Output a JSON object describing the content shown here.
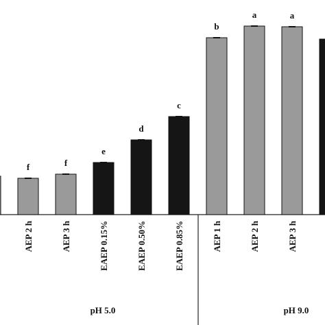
{
  "chart_data": {
    "type": "bar",
    "categories": [
      null,
      "AEP 2 h",
      "AEP 3 h",
      "EAEP 0.15%",
      "EAEP 0.50%",
      "EAEP 0.85%",
      "AEP 1 h",
      "AEP 2 h",
      "AEP 3 h",
      null
    ],
    "values": [
      56,
      53,
      59,
      76,
      109,
      143,
      258,
      275,
      274,
      256
    ],
    "letters": [
      null,
      "f",
      "f",
      "e",
      "d",
      "c",
      "b",
      "a",
      "a",
      null
    ],
    "colors": [
      "#9a9a9a",
      "#9a9a9a",
      "#9a9a9a",
      "#151515",
      "#151515",
      "#151515",
      "#9a9a9a",
      "#9a9a9a",
      "#9a9a9a",
      "#151515"
    ],
    "groups": [
      {
        "label": "pH 5.0",
        "from": 0,
        "to": 5
      },
      {
        "label": "pH 9.0",
        "from": 6,
        "to": 9
      }
    ]
  }
}
